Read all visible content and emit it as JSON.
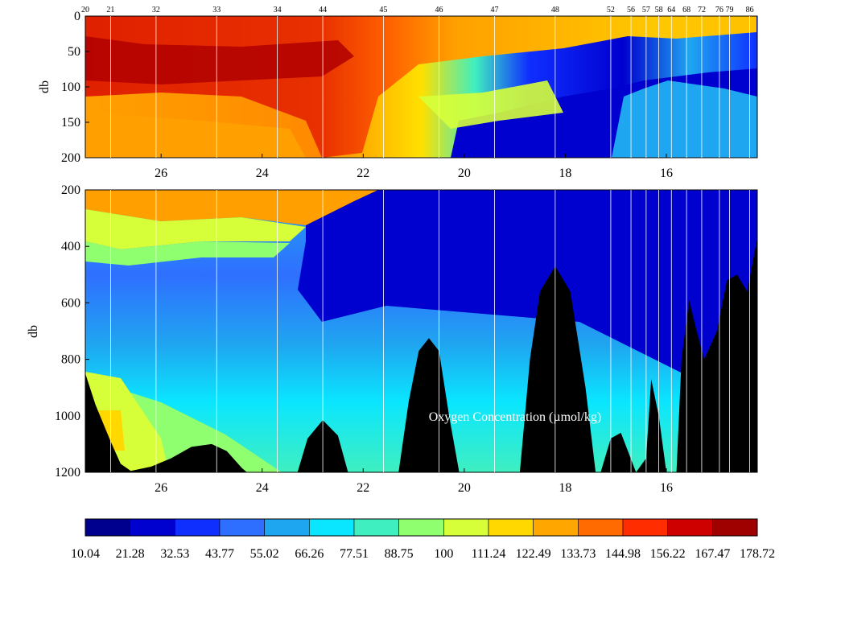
{
  "chart_data": {
    "type": "heatmap",
    "title": "",
    "annotation": "Oxygen Concentration (µmol/kg)",
    "x_direction": "decreasing",
    "xlim": [
      27.5,
      14.2
    ],
    "xticks": [
      26,
      24,
      22,
      20,
      18,
      16
    ],
    "stations": [
      {
        "label": "20",
        "x": 27.5
      },
      {
        "label": "21",
        "x": 27.0
      },
      {
        "label": "32",
        "x": 26.1
      },
      {
        "label": "33",
        "x": 24.9
      },
      {
        "label": "34",
        "x": 23.7
      },
      {
        "label": "44",
        "x": 22.8
      },
      {
        "label": "45",
        "x": 21.6
      },
      {
        "label": "46",
        "x": 20.5
      },
      {
        "label": "47",
        "x": 19.4
      },
      {
        "label": "48",
        "x": 18.2
      },
      {
        "label": "52",
        "x": 17.1
      },
      {
        "label": "56",
        "x": 16.7
      },
      {
        "label": "57",
        "x": 16.4
      },
      {
        "label": "58",
        "x": 16.15
      },
      {
        "label": "64",
        "x": 15.9
      },
      {
        "label": "68",
        "x": 15.6
      },
      {
        "label": "72",
        "x": 15.3
      },
      {
        "label": "76",
        "x": 14.95
      },
      {
        "label": "79",
        "x": 14.75
      },
      {
        "label": "86",
        "x": 14.35
      }
    ],
    "panels": [
      {
        "ylabel": "db",
        "ylim": [
          0,
          200
        ],
        "yticks": [
          0,
          50,
          100,
          150,
          200
        ]
      },
      {
        "ylabel": "db",
        "ylim": [
          200,
          1200
        ],
        "yticks": [
          200,
          400,
          600,
          800,
          1000,
          1200
        ]
      }
    ],
    "colorbar": {
      "levels": [
        10.04,
        21.28,
        32.53,
        43.77,
        55.02,
        66.26,
        77.51,
        88.75,
        100,
        111.24,
        122.49,
        133.73,
        144.98,
        156.22,
        167.47,
        178.72
      ],
      "colors": [
        "#00008f",
        "#0000cf",
        "#0f2fff",
        "#2f6fff",
        "#1fa6f0",
        "#0ae6ff",
        "#3fefc0",
        "#8fff70",
        "#d6ff3a",
        "#ffd800",
        "#ffa600",
        "#ff6b00",
        "#ff2d00",
        "#cf0000",
        "#9f0000"
      ]
    },
    "bathymetry_depth_db": [
      [
        27.5,
        850
      ],
      [
        27.3,
        960
      ],
      [
        27.0,
        1090
      ],
      [
        26.8,
        1170
      ],
      [
        26.6,
        1195
      ],
      [
        26.2,
        1180
      ],
      [
        25.8,
        1150
      ],
      [
        25.4,
        1110
      ],
      [
        25.0,
        1100
      ],
      [
        24.7,
        1125
      ],
      [
        24.4,
        1185
      ],
      [
        24.3,
        1200
      ],
      [
        23.3,
        1200
      ],
      [
        23.1,
        1080
      ],
      [
        22.8,
        1015
      ],
      [
        22.5,
        1070
      ],
      [
        22.3,
        1200
      ],
      [
        21.3,
        1200
      ],
      [
        21.1,
        950
      ],
      [
        20.9,
        770
      ],
      [
        20.7,
        725
      ],
      [
        20.5,
        770
      ],
      [
        20.3,
        1000
      ],
      [
        20.1,
        1200
      ],
      [
        18.9,
        1200
      ],
      [
        18.7,
        800
      ],
      [
        18.5,
        560
      ],
      [
        18.2,
        470
      ],
      [
        17.9,
        560
      ],
      [
        17.6,
        900
      ],
      [
        17.4,
        1200
      ],
      [
        17.3,
        1200
      ],
      [
        17.1,
        1080
      ],
      [
        16.9,
        1060
      ],
      [
        16.75,
        1130
      ],
      [
        16.6,
        1200
      ],
      [
        16.4,
        1150
      ],
      [
        16.3,
        870
      ],
      [
        16.15,
        1000
      ],
      [
        16.0,
        1200
      ],
      [
        15.8,
        1200
      ],
      [
        15.7,
        800
      ],
      [
        15.55,
        590
      ],
      [
        15.4,
        700
      ],
      [
        15.25,
        800
      ],
      [
        15.0,
        700
      ],
      [
        14.8,
        520
      ],
      [
        14.6,
        500
      ],
      [
        14.4,
        560
      ],
      [
        14.2,
        370
      ]
    ]
  }
}
